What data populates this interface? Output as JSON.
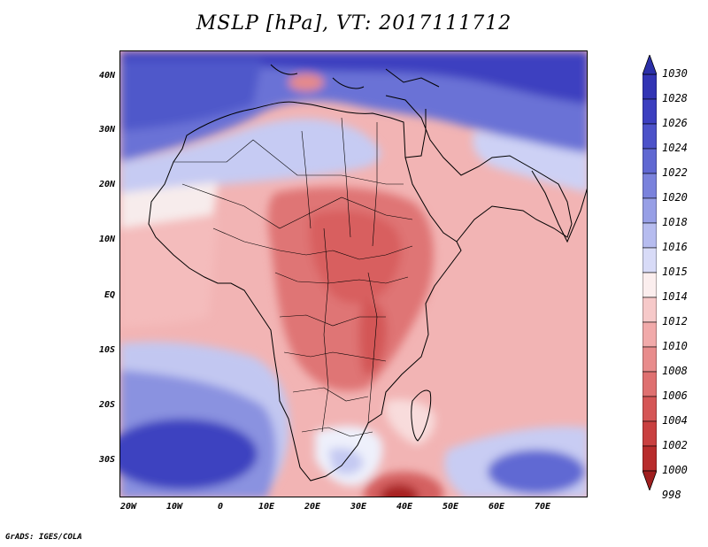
{
  "title": "MSLP [hPa], VT: 2017111712",
  "credit": "GrADS: IGES/COLA",
  "lat_labels": [
    "40N",
    "30N",
    "20N",
    "10N",
    "EQ",
    "10S",
    "20S",
    "30S"
  ],
  "lon_labels": [
    "20W",
    "10W",
    "0",
    "10E",
    "20E",
    "30E",
    "40E",
    "50E",
    "60E",
    "70E"
  ],
  "legend": {
    "labels": [
      "1030",
      "1028",
      "1026",
      "1024",
      "1022",
      "1020",
      "1018",
      "1016",
      "1015",
      "1014",
      "1012",
      "1010",
      "1008",
      "1006",
      "1004",
      "1002",
      "1000",
      "998"
    ],
    "colors": [
      "#2b2fa8",
      "#3234b4",
      "#3c3fc0",
      "#4c52c9",
      "#6068d2",
      "#7a82dc",
      "#979fe6",
      "#b6bcef",
      "#d8dbf7",
      "#fbeeee",
      "#f6c9c9",
      "#f1aaaa",
      "#e88c8c",
      "#df7070",
      "#d55656",
      "#c94040",
      "#b82c2c",
      "#a01f1f"
    ]
  },
  "map": {
    "region": "Africa, Arabian Peninsula and western Indian Ocean",
    "lat_range": [
      -37,
      45
    ],
    "lon_range": [
      -22,
      80
    ],
    "variable": "mean sea level pressure",
    "units": "hPa"
  }
}
